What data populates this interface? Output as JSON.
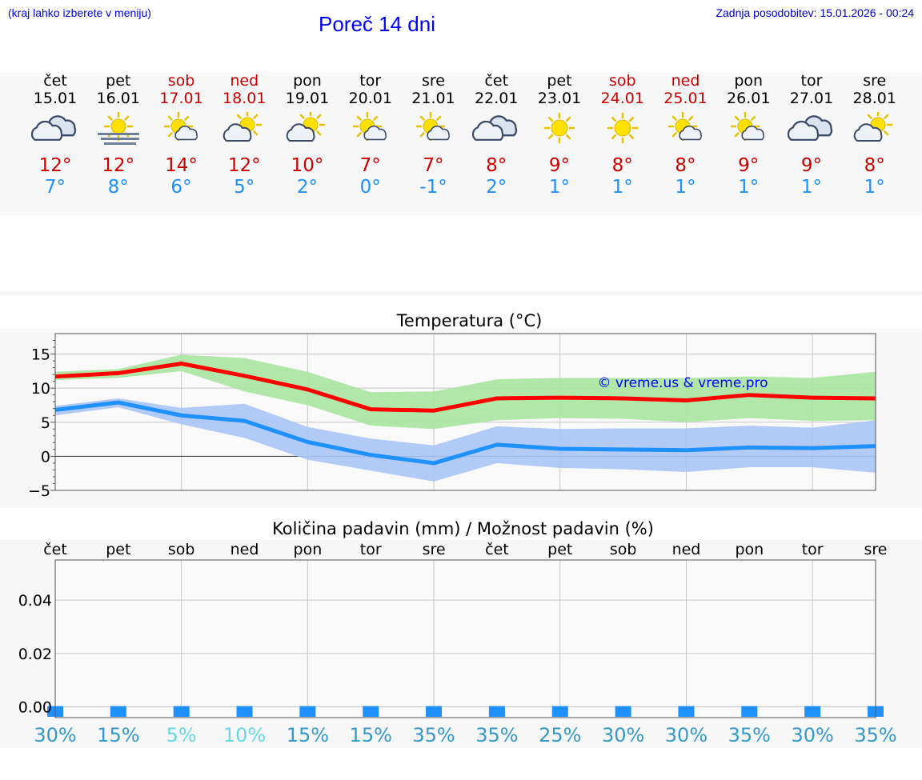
{
  "header": {
    "hint": "(kraj lahko izberete v meniju)",
    "title": "Poreč 14 dni",
    "updated": "Zadnja posodobitev: 15.01.2026 - 00:24"
  },
  "days": [
    {
      "name": "čet",
      "date": "15.01",
      "weekend": false,
      "icon": "cloudy-icon",
      "max": "12°",
      "min": "7°"
    },
    {
      "name": "pet",
      "date": "16.01",
      "weekend": false,
      "icon": "sun-fog-icon",
      "max": "12°",
      "min": "8°"
    },
    {
      "name": "sob",
      "date": "17.01",
      "weekend": true,
      "icon": "sun-small-cloud-icon",
      "max": "14°",
      "min": "6°"
    },
    {
      "name": "ned",
      "date": "18.01",
      "weekend": true,
      "icon": "partly-cloudy-icon",
      "max": "12°",
      "min": "5°"
    },
    {
      "name": "pon",
      "date": "19.01",
      "weekend": false,
      "icon": "partly-cloudy-icon",
      "max": "10°",
      "min": "2°"
    },
    {
      "name": "tor",
      "date": "20.01",
      "weekend": false,
      "icon": "sun-small-cloud-icon",
      "max": "7°",
      "min": "0°"
    },
    {
      "name": "sre",
      "date": "21.01",
      "weekend": false,
      "icon": "sun-small-cloud-icon",
      "max": "7°",
      "min": "-1°"
    },
    {
      "name": "čet",
      "date": "22.01",
      "weekend": false,
      "icon": "cloudy-icon",
      "max": "8°",
      "min": "2°"
    },
    {
      "name": "pet",
      "date": "23.01",
      "weekend": false,
      "icon": "sun-icon",
      "max": "9°",
      "min": "1°"
    },
    {
      "name": "sob",
      "date": "24.01",
      "weekend": true,
      "icon": "sun-icon",
      "max": "8°",
      "min": "1°"
    },
    {
      "name": "ned",
      "date": "25.01",
      "weekend": true,
      "icon": "sun-small-cloud-icon",
      "max": "8°",
      "min": "1°"
    },
    {
      "name": "pon",
      "date": "26.01",
      "weekend": false,
      "icon": "sun-small-cloud-icon",
      "max": "9°",
      "min": "1°"
    },
    {
      "name": "tor",
      "date": "27.01",
      "weekend": false,
      "icon": "cloudy-icon",
      "max": "9°",
      "min": "1°"
    },
    {
      "name": "sre",
      "date": "28.01",
      "weekend": false,
      "icon": "partly-cloudy-icon",
      "max": "8°",
      "min": "1°"
    }
  ],
  "colors": {
    "max_line": "#ff0000",
    "max_band": "#a8e6a0",
    "min_line": "#1e90ff",
    "min_band": "#a9c4f5",
    "prob_dark": "#3399cc",
    "prob_light": "#66d9e8",
    "title": "#0000ff"
  },
  "chart_data": [
    {
      "type": "line",
      "title": "Temperatura (°C)",
      "watermark": "© vreme.us & vreme.pro",
      "ylim": [
        -5,
        18
      ],
      "yticks": [
        -5,
        0,
        5,
        10,
        15
      ],
      "x": [
        0,
        1,
        2,
        3,
        4,
        5,
        6,
        7,
        8,
        9,
        10,
        11,
        12,
        13
      ],
      "series": [
        {
          "name": "max",
          "values": [
            11.7,
            12.2,
            13.6,
            11.8,
            9.8,
            6.9,
            6.7,
            8.5,
            8.6,
            8.5,
            8.2,
            9.0,
            8.6,
            8.5
          ],
          "band_low": [
            11.2,
            11.5,
            12.5,
            9.5,
            7.5,
            4.5,
            4.0,
            5.3,
            5.6,
            5.5,
            5.0,
            5.6,
            5.2,
            5.3
          ],
          "band_high": [
            12.4,
            12.8,
            14.9,
            14.4,
            12.4,
            9.4,
            9.5,
            11.3,
            11.5,
            11.5,
            11.5,
            11.7,
            11.5,
            12.4
          ]
        },
        {
          "name": "min",
          "values": [
            6.8,
            7.9,
            6.0,
            5.2,
            2.1,
            0.2,
            -1.0,
            1.7,
            1.1,
            1.0,
            0.9,
            1.3,
            1.2,
            1.5
          ],
          "band_low": [
            6.0,
            7.2,
            4.7,
            2.7,
            -0.5,
            -2.1,
            -3.7,
            -1.0,
            -1.7,
            -1.9,
            -2.3,
            -1.6,
            -1.6,
            -2.4
          ],
          "band_high": [
            7.4,
            8.5,
            7.1,
            7.7,
            4.3,
            2.6,
            1.6,
            4.4,
            4.0,
            4.1,
            4.1,
            4.5,
            4.2,
            5.3
          ]
        }
      ]
    },
    {
      "type": "bar",
      "title": "Količina padavin (mm) / Možnost padavin (%)",
      "categories": [
        "čet",
        "pet",
        "sob",
        "ned",
        "pon",
        "tor",
        "sre",
        "čet",
        "pet",
        "sob",
        "ned",
        "pon",
        "tor",
        "sre"
      ],
      "values": [
        0,
        0,
        0,
        0,
        0,
        0,
        0,
        0,
        0,
        0,
        0,
        0,
        0,
        0
      ],
      "ylim": [
        -0.004,
        0.055
      ],
      "yticks": [
        0.0,
        0.02,
        0.04
      ],
      "ytick_labels": [
        "0.00",
        "0.02",
        "0.04"
      ],
      "probability": [
        "30%",
        "15%",
        "5%",
        "10%",
        "15%",
        "15%",
        "35%",
        "35%",
        "25%",
        "30%",
        "30%",
        "35%",
        "30%",
        "35%"
      ]
    }
  ]
}
